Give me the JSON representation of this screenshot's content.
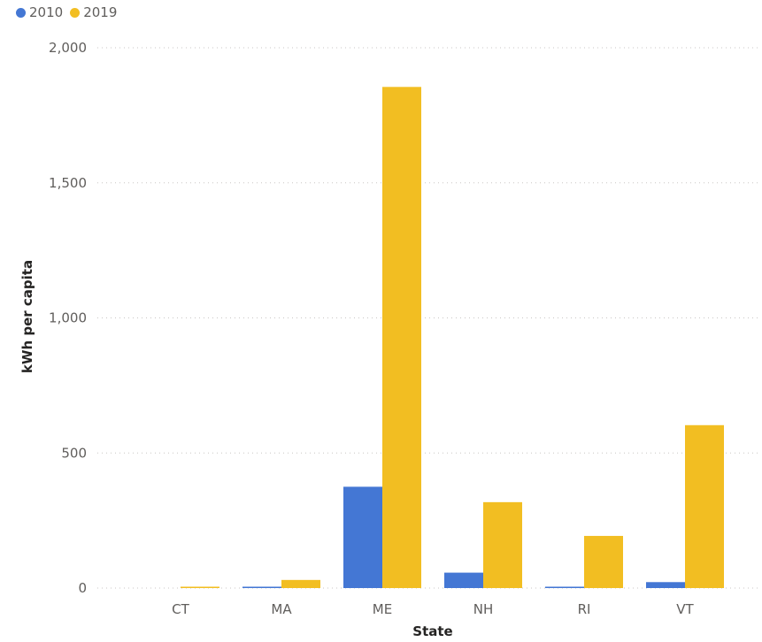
{
  "legend": [
    {
      "label": "2010",
      "color": "#4477d4"
    },
    {
      "label": "2019",
      "color": "#f2be22"
    }
  ],
  "chart_data": {
    "type": "bar",
    "categories": [
      "CT",
      "MA",
      "ME",
      "NH",
      "RI",
      "VT"
    ],
    "series": [
      {
        "name": "2010",
        "color": "#4477d4",
        "values": [
          0,
          5,
          375,
          57,
          5,
          22
        ]
      },
      {
        "name": "2019",
        "color": "#f2be22",
        "values": [
          5,
          30,
          1855,
          318,
          193,
          603
        ]
      }
    ],
    "xlabel": "State",
    "ylabel": "kWh per capita",
    "ylim": [
      0,
      2000
    ],
    "yticks": [
      0,
      500,
      1000,
      1500,
      2000
    ],
    "ytick_labels": [
      "0",
      "500",
      "1,000",
      "1,500",
      "2,000"
    ],
    "grid": true,
    "legend_position": "top-left"
  }
}
